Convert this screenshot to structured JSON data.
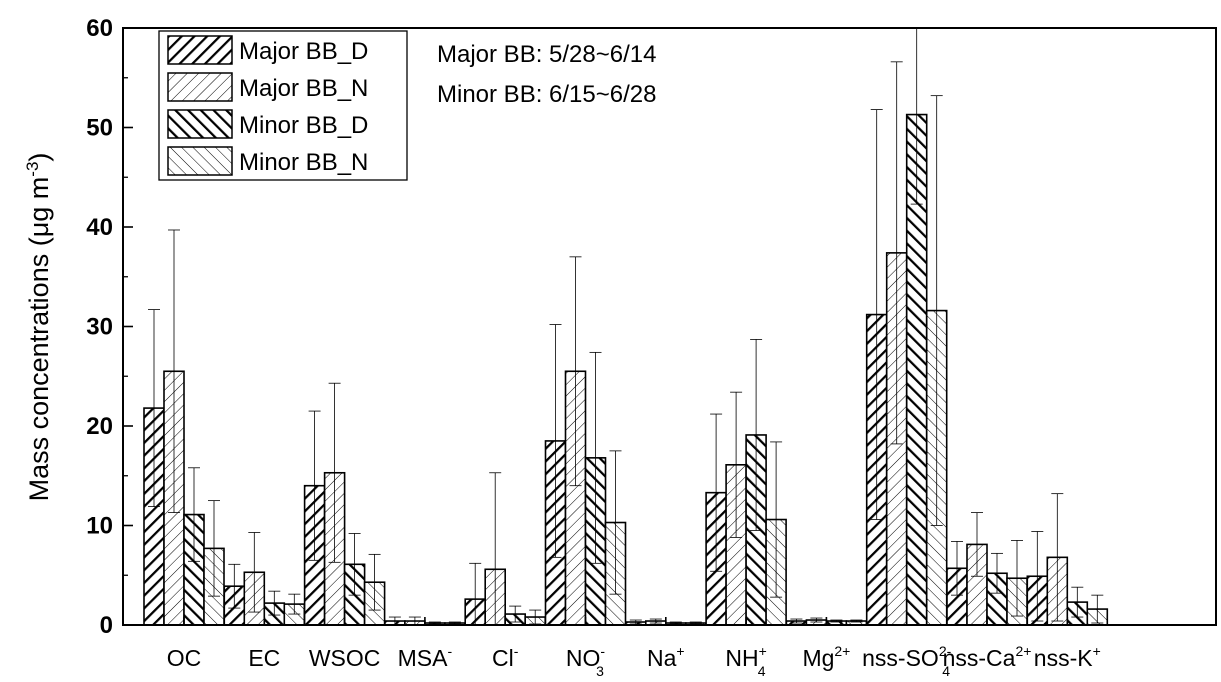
{
  "chart_data": {
    "type": "bar",
    "ylabel_main": "Mass concentrations (",
    "ylabel_mu": "μ",
    "ylabel_unit": "g m",
    "ylabel_exp": "-3",
    "ylabel_close": ")",
    "ylim": [
      0,
      60
    ],
    "yticks": [
      "0",
      "10",
      "20",
      "30",
      "40",
      "50",
      "60"
    ],
    "grid": false,
    "legend_position": "top-left",
    "categories": [
      {
        "base": "OC",
        "sub": "",
        "sup": ""
      },
      {
        "base": "EC",
        "sub": "",
        "sup": ""
      },
      {
        "base": "WSOC",
        "sub": "",
        "sup": ""
      },
      {
        "base": "MSA",
        "sub": "",
        "sup": "-"
      },
      {
        "base": "Cl",
        "sub": "",
        "sup": "-"
      },
      {
        "base": "NO",
        "sub": "3",
        "sup": "-"
      },
      {
        "base": "Na",
        "sub": "",
        "sup": "+"
      },
      {
        "base": "NH",
        "sub": "4",
        "sup": "+"
      },
      {
        "base": "Mg",
        "sub": "",
        "sup": "2+"
      },
      {
        "base": "nss-SO",
        "sub": "4",
        "sup": "2-"
      },
      {
        "base": "nss-Ca",
        "sub": "",
        "sup": "2+"
      },
      {
        "base": "nss-K",
        "sub": "",
        "sup": "+"
      }
    ],
    "series": [
      {
        "name": "Major BB_D",
        "pattern": "dense-forward",
        "values": [
          21.8,
          3.9,
          14.0,
          0.4,
          2.6,
          18.5,
          0.3,
          13.3,
          0.4,
          31.2,
          5.7,
          4.9
        ],
        "errors": [
          9.9,
          2.2,
          7.5,
          0.4,
          3.6,
          11.7,
          0.2,
          7.9,
          0.2,
          20.6,
          2.7,
          4.5
        ]
      },
      {
        "name": "Major BB_N",
        "pattern": "sparse-forward",
        "values": [
          25.5,
          5.3,
          15.3,
          0.4,
          5.6,
          25.5,
          0.4,
          16.1,
          0.5,
          37.4,
          8.1,
          6.8
        ],
        "errors": [
          14.2,
          4.0,
          9.0,
          0.4,
          9.7,
          11.5,
          0.2,
          7.3,
          0.2,
          19.2,
          3.2,
          6.4
        ]
      },
      {
        "name": "Minor BB_D",
        "pattern": "dense-back",
        "values": [
          11.1,
          2.2,
          6.1,
          0.2,
          1.1,
          16.8,
          0.2,
          19.1,
          0.4,
          51.3,
          5.2,
          2.3
        ],
        "errors": [
          4.7,
          1.2,
          3.1,
          0.1,
          0.8,
          10.6,
          0.1,
          9.6,
          0.1,
          9.0,
          2.0,
          1.5
        ]
      },
      {
        "name": "Minor BB_N",
        "pattern": "sparse-back",
        "values": [
          7.7,
          2.1,
          4.3,
          0.2,
          0.8,
          10.3,
          0.2,
          10.6,
          0.4,
          31.6,
          4.7,
          1.6
        ],
        "errors": [
          4.8,
          1.0,
          2.8,
          0.1,
          0.7,
          7.2,
          0.1,
          7.8,
          0.1,
          21.6,
          3.8,
          1.4
        ]
      }
    ],
    "annotations": [
      "Major BB: 5/28~6/14",
      "Minor BB: 6/15~6/28"
    ]
  }
}
